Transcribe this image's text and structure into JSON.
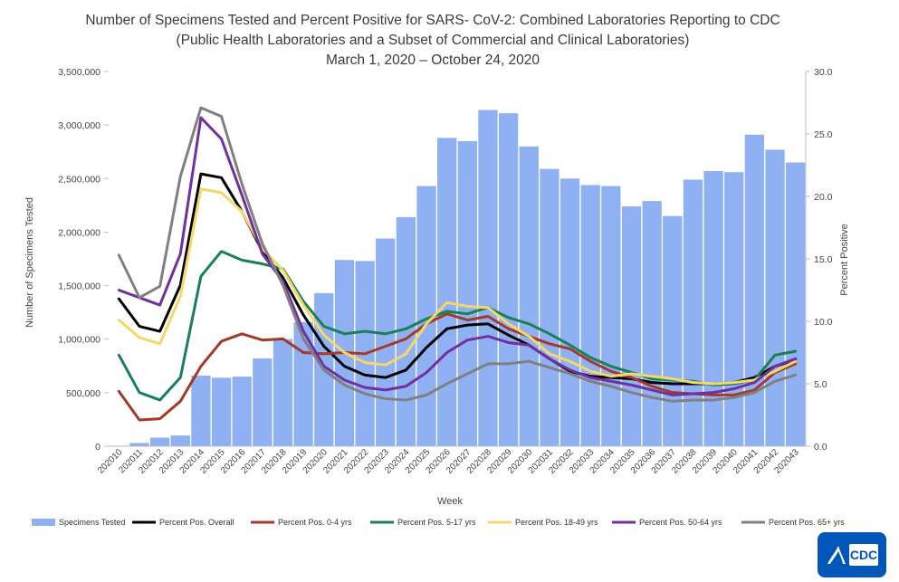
{
  "chart_data": {
    "type": "bar+line",
    "title": [
      "Number of Specimens Tested and Percent Positive for SARS- CoV-2: Combined Laboratories Reporting to CDC",
      "(Public Health Laboratories and a Subset of Commercial and Clinical Laboratories)",
      "March 1, 2020 – October 24, 2020"
    ],
    "xlabel": "Week",
    "ylabel_left": "Number of Specimens Tested",
    "ylabel_right": "Percent Positive",
    "ylim_left": [
      0,
      3500000
    ],
    "ylim_right": [
      0,
      30
    ],
    "yticks_left": [
      "0",
      "500,000",
      "1,000,000",
      "1,500,000",
      "2,000,000",
      "2,500,000",
      "3,000,000",
      "3,500,000"
    ],
    "yticks_right": [
      "0.0",
      "5.0",
      "10.0",
      "15.0",
      "20.0",
      "25.0",
      "30.0"
    ],
    "categories": [
      "202010",
      "202011",
      "202012",
      "202013",
      "202014",
      "202015",
      "202016",
      "202017",
      "202018",
      "202019",
      "202020",
      "202021",
      "202022",
      "202023",
      "202024",
      "202025",
      "202026",
      "202027",
      "202028",
      "202029",
      "202030",
      "202031",
      "202032",
      "202033",
      "202034",
      "202035",
      "202036",
      "202037",
      "202038",
      "202039",
      "202040",
      "202041",
      "202042",
      "202043"
    ],
    "bars": {
      "name": "Specimens Tested",
      "color": "#8fb0f2",
      "values": [
        5000,
        30000,
        80000,
        100000,
        660000,
        640000,
        650000,
        820000,
        1000000,
        1160000,
        1430000,
        1740000,
        1730000,
        1940000,
        2140000,
        2430000,
        2880000,
        2850000,
        3140000,
        3110000,
        2800000,
        2590000,
        2500000,
        2440000,
        2430000,
        2240000,
        2290000,
        2150000,
        2490000,
        2570000,
        2560000,
        2910000,
        2770000,
        2650000
      ]
    },
    "series": [
      {
        "name": "Percent Pos. Overall",
        "color": "#000000",
        "values": [
          11.8,
          9.6,
          9.2,
          12.9,
          21.8,
          21.5,
          18.8,
          15.6,
          13.5,
          10.5,
          8.0,
          6.4,
          5.7,
          5.5,
          6.1,
          7.9,
          9.4,
          9.7,
          9.8,
          8.9,
          8.1,
          7.0,
          6.0,
          5.6,
          5.5,
          5.4,
          5.1,
          5.0,
          5.0,
          5.0,
          5.1,
          5.5,
          6.4,
          6.9
        ]
      },
      {
        "name": "Percent Pos. 0-4 yrs",
        "color": "#a33a2a",
        "values": [
          4.4,
          2.1,
          2.2,
          3.6,
          6.4,
          8.4,
          9.0,
          8.5,
          8.6,
          7.5,
          7.4,
          7.5,
          7.4,
          8.0,
          8.6,
          9.8,
          10.6,
          10.1,
          10.4,
          9.4,
          8.8,
          8.2,
          7.8,
          6.8,
          6.0,
          5.5,
          4.8,
          4.3,
          4.2,
          4.1,
          4.1,
          4.5,
          5.9,
          6.6
        ]
      },
      {
        "name": "Percent Pos. 5-17 yrs",
        "color": "#1a8055",
        "values": [
          7.3,
          4.3,
          3.7,
          5.5,
          13.6,
          15.6,
          14.9,
          14.6,
          14.2,
          11.6,
          9.6,
          9.0,
          9.2,
          9.0,
          9.4,
          10.2,
          10.8,
          10.6,
          11.1,
          10.3,
          9.8,
          9.0,
          8.1,
          7.1,
          6.4,
          5.9,
          5.4,
          5.3,
          5.2,
          4.9,
          5.0,
          5.3,
          7.3,
          7.6
        ]
      },
      {
        "name": "Percent Pos. 18-49 yrs",
        "color": "#f5d86a",
        "values": [
          10.1,
          8.7,
          8.2,
          12.0,
          20.6,
          20.3,
          18.8,
          15.8,
          14.1,
          11.3,
          8.9,
          7.5,
          6.7,
          6.5,
          7.4,
          9.8,
          11.5,
          11.2,
          11.1,
          9.8,
          8.8,
          7.4,
          6.8,
          6.0,
          5.6,
          5.8,
          5.6,
          5.4,
          5.1,
          5.0,
          5.1,
          5.3,
          6.0,
          6.8
        ]
      },
      {
        "name": "Percent Pos. 50-64 yrs",
        "color": "#7030a0",
        "values": [
          12.5,
          11.9,
          11.3,
          15.4,
          26.3,
          24.6,
          20.1,
          15.4,
          13.2,
          9.2,
          6.4,
          5.3,
          4.7,
          4.5,
          4.8,
          5.9,
          7.5,
          8.5,
          8.8,
          8.3,
          8.1,
          7.0,
          6.1,
          5.5,
          5.2,
          4.9,
          4.5,
          4.1,
          4.2,
          4.3,
          4.6,
          5.1,
          6.4,
          7.0
        ]
      },
      {
        "name": "Percent Pos. 65+ yrs",
        "color": "#808080",
        "values": [
          15.3,
          11.9,
          12.8,
          21.6,
          27.1,
          26.4,
          21.0,
          16.2,
          12.9,
          8.6,
          6.1,
          4.9,
          4.2,
          3.8,
          3.7,
          4.1,
          5.0,
          5.8,
          6.6,
          6.6,
          6.8,
          6.3,
          5.8,
          5.2,
          4.8,
          4.3,
          3.9,
          3.6,
          3.7,
          3.7,
          3.9,
          4.3,
          5.2,
          5.7
        ]
      }
    ],
    "legend_position": "bottom"
  },
  "logo": {
    "text": "CDC",
    "color": "#0057b8"
  }
}
